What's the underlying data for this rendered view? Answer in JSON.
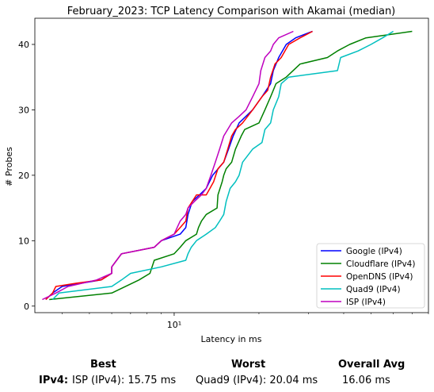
{
  "chart_data": {
    "type": "line",
    "title": "February_2023: TCP Latency Comparison with Akamai (median)",
    "xlabel": "Latency in ms",
    "ylabel": "# Probes",
    "x_scale": "log",
    "xlim": [
      3.2,
      80
    ],
    "ylim": [
      -1,
      44
    ],
    "x_ticks": [
      10
    ],
    "x_tick_labels": [
      "10¹"
    ],
    "y_ticks": [
      0,
      10,
      20,
      30,
      40
    ],
    "legend_position": "lower-right",
    "grid": false,
    "series": [
      {
        "name": "Google (IPv4)",
        "color": "#0000ff",
        "points": [
          [
            3.5,
            1
          ],
          [
            3.7,
            2
          ],
          [
            4.0,
            3
          ],
          [
            5.5,
            4
          ],
          [
            6.0,
            5
          ],
          [
            6.0,
            6
          ],
          [
            6.5,
            8
          ],
          [
            8.5,
            9
          ],
          [
            9.0,
            10
          ],
          [
            10.5,
            11
          ],
          [
            11.0,
            12
          ],
          [
            11.2,
            14
          ],
          [
            11.6,
            16
          ],
          [
            12.3,
            17
          ],
          [
            13.0,
            18
          ],
          [
            13.7,
            20
          ],
          [
            15.0,
            22
          ],
          [
            15.6,
            24
          ],
          [
            16.2,
            26
          ],
          [
            17.0,
            28
          ],
          [
            19.0,
            30
          ],
          [
            20.5,
            32
          ],
          [
            22.0,
            34
          ],
          [
            22.5,
            36
          ],
          [
            23.5,
            38
          ],
          [
            25.0,
            40
          ],
          [
            27.0,
            41
          ],
          [
            31.0,
            42
          ]
        ]
      },
      {
        "name": "Cloudflare (IPv4)",
        "color": "#008000",
        "points": [
          [
            3.6,
            1
          ],
          [
            6.0,
            2
          ],
          [
            7.5,
            4
          ],
          [
            8.2,
            5
          ],
          [
            8.5,
            7
          ],
          [
            10.0,
            8
          ],
          [
            10.5,
            9
          ],
          [
            11.0,
            10
          ],
          [
            12.0,
            11
          ],
          [
            12.2,
            12
          ],
          [
            12.5,
            13
          ],
          [
            13.0,
            14
          ],
          [
            14.2,
            15
          ],
          [
            14.3,
            17
          ],
          [
            14.8,
            19
          ],
          [
            15.0,
            20
          ],
          [
            15.3,
            21
          ],
          [
            16.0,
            22
          ],
          [
            16.5,
            24
          ],
          [
            17.3,
            26
          ],
          [
            17.8,
            27
          ],
          [
            20.0,
            28
          ],
          [
            21.0,
            30
          ],
          [
            22.0,
            32
          ],
          [
            22.5,
            33
          ],
          [
            23.0,
            34
          ],
          [
            25.0,
            35
          ],
          [
            28.0,
            37
          ],
          [
            35.0,
            38
          ],
          [
            38.0,
            39
          ],
          [
            42.0,
            40
          ],
          [
            48.0,
            41
          ],
          [
            70.0,
            42
          ]
        ]
      },
      {
        "name": "OpenDNS (IPv4)",
        "color": "#ff0000",
        "points": [
          [
            3.5,
            1
          ],
          [
            3.7,
            2
          ],
          [
            3.8,
            3
          ],
          [
            4.5,
            3.5
          ],
          [
            5.5,
            4
          ],
          [
            6.0,
            5
          ],
          [
            6.0,
            6
          ],
          [
            6.5,
            8
          ],
          [
            8.5,
            9
          ],
          [
            9.0,
            10
          ],
          [
            10.0,
            11
          ],
          [
            10.5,
            12
          ],
          [
            11.0,
            13
          ],
          [
            11.2,
            15
          ],
          [
            11.6,
            16
          ],
          [
            12.0,
            17
          ],
          [
            13.0,
            17
          ],
          [
            13.4,
            18
          ],
          [
            13.8,
            19
          ],
          [
            14.3,
            21
          ],
          [
            15.0,
            22
          ],
          [
            15.5,
            24
          ],
          [
            16.0,
            26
          ],
          [
            16.5,
            27
          ],
          [
            17.5,
            28
          ],
          [
            19.0,
            30
          ],
          [
            20.5,
            32
          ],
          [
            21.5,
            33
          ],
          [
            22.0,
            35
          ],
          [
            22.8,
            37
          ],
          [
            24.0,
            38
          ],
          [
            25.5,
            40
          ],
          [
            28.0,
            41
          ],
          [
            31.0,
            42
          ]
        ]
      },
      {
        "name": "Quad9 (IPv4)",
        "color": "#00bfbf",
        "points": [
          [
            3.7,
            1
          ],
          [
            3.9,
            2
          ],
          [
            6.0,
            3
          ],
          [
            6.5,
            4
          ],
          [
            7.0,
            5
          ],
          [
            9.0,
            6
          ],
          [
            11.0,
            7
          ],
          [
            11.2,
            8
          ],
          [
            11.5,
            9
          ],
          [
            12.0,
            10
          ],
          [
            13.0,
            11
          ],
          [
            14.0,
            12
          ],
          [
            14.5,
            13
          ],
          [
            15.0,
            14
          ],
          [
            15.3,
            16
          ],
          [
            15.8,
            18
          ],
          [
            16.5,
            19
          ],
          [
            17.0,
            20
          ],
          [
            17.5,
            22
          ],
          [
            19.0,
            24
          ],
          [
            20.5,
            25
          ],
          [
            21.0,
            27
          ],
          [
            22.0,
            28
          ],
          [
            22.5,
            30
          ],
          [
            23.5,
            32
          ],
          [
            24.0,
            34
          ],
          [
            25.5,
            35
          ],
          [
            38.0,
            36
          ],
          [
            39.0,
            38
          ],
          [
            45.0,
            39
          ],
          [
            50.0,
            40
          ],
          [
            55.0,
            41
          ],
          [
            60.0,
            42
          ]
        ]
      },
      {
        "name": "ISP (IPv4)",
        "color": "#bf00bf",
        "points": [
          [
            3.4,
            1
          ],
          [
            3.8,
            2
          ],
          [
            4.2,
            3
          ],
          [
            5.3,
            4
          ],
          [
            6.0,
            5
          ],
          [
            6.0,
            6
          ],
          [
            6.5,
            8
          ],
          [
            8.5,
            9
          ],
          [
            9.0,
            10
          ],
          [
            10.0,
            11
          ],
          [
            10.5,
            13
          ],
          [
            11.0,
            14
          ],
          [
            11.2,
            15
          ],
          [
            11.8,
            16
          ],
          [
            12.5,
            17
          ],
          [
            13.0,
            18
          ],
          [
            13.5,
            20
          ],
          [
            14.0,
            22
          ],
          [
            14.5,
            24
          ],
          [
            15.0,
            26
          ],
          [
            16.0,
            28
          ],
          [
            17.0,
            29
          ],
          [
            18.0,
            30
          ],
          [
            19.0,
            32
          ],
          [
            20.0,
            34
          ],
          [
            20.3,
            36
          ],
          [
            21.0,
            38
          ],
          [
            22.0,
            39
          ],
          [
            22.5,
            40
          ],
          [
            23.5,
            41
          ],
          [
            26.5,
            42
          ]
        ]
      }
    ]
  },
  "summary": {
    "headers": {
      "best": "Best",
      "worst": "Worst",
      "avg": "Overall Avg"
    },
    "row_label": "IPv4:",
    "best": "ISP (IPv4): 15.75 ms",
    "worst": "Quad9 (IPv4): 20.04 ms",
    "avg": "16.06 ms"
  }
}
